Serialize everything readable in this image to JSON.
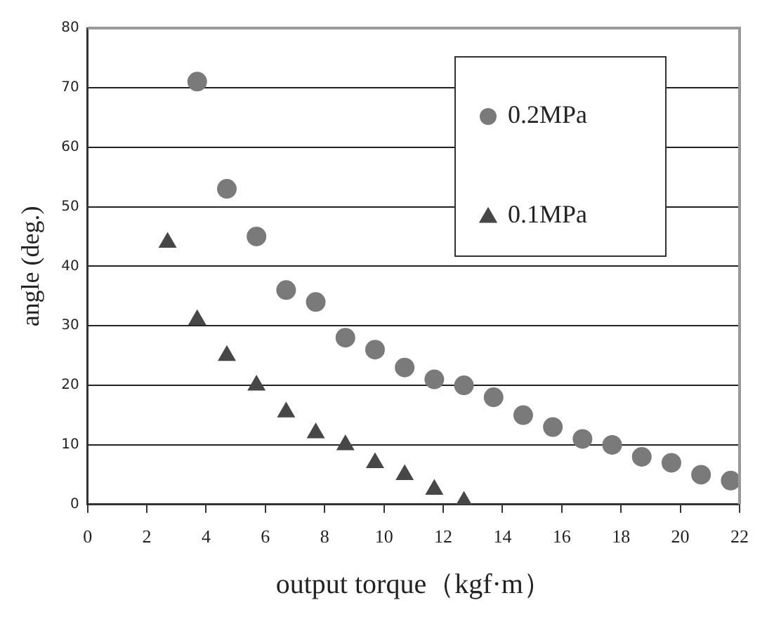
{
  "chart_data": {
    "type": "scatter",
    "xlabel": "output torque（kgf·m）",
    "ylabel": "angle (deg.)",
    "xlim": [
      0,
      22
    ],
    "xticks": [
      0,
      2,
      4,
      6,
      8,
      10,
      12,
      14,
      16,
      18,
      20,
      22
    ],
    "ylim": [
      0,
      80
    ],
    "yticks": [
      0,
      10,
      20,
      30,
      40,
      50,
      60,
      70,
      80
    ],
    "grid": "y",
    "legend": "top right",
    "series": [
      {
        "name": "0.2MPa",
        "color": "#7a7a7a",
        "marker": "circle",
        "x": [
          3.7,
          4.7,
          5.7,
          6.7,
          7.7,
          8.7,
          9.7,
          10.7,
          11.7,
          12.7,
          13.7,
          14.7,
          15.7,
          16.7,
          17.7,
          18.7,
          19.7,
          20.7,
          21.7
        ],
        "values": [
          71,
          53,
          45,
          36,
          34,
          28,
          26,
          23,
          21,
          20,
          18,
          15,
          13,
          11,
          10,
          8,
          7,
          5,
          4
        ]
      },
      {
        "name": "0.1MPa",
        "color": "#474747",
        "marker": "triangle",
        "x": [
          2.7,
          3.7,
          4.7,
          5.7,
          6.7,
          7.7,
          8.7,
          9.7,
          10.7,
          11.7,
          12.7
        ],
        "values": [
          44,
          31,
          25,
          20,
          15.5,
          12,
          10,
          7,
          5,
          2.5,
          0.5
        ]
      }
    ]
  }
}
